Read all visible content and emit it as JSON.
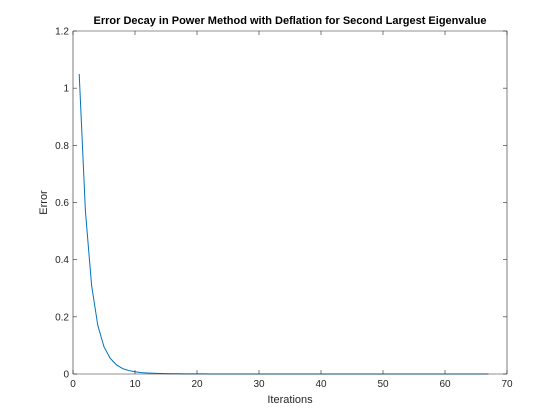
{
  "chart_data": {
    "type": "line",
    "title": "Error Decay in Power Method with Deflation for Second Largest Eigenvalue",
    "xlabel": "Iterations",
    "ylabel": "Error",
    "xlim": [
      0,
      70
    ],
    "ylim": [
      0,
      1.2
    ],
    "xticks": [
      0,
      10,
      20,
      30,
      40,
      50,
      60,
      70
    ],
    "yticks": [
      0,
      0.2,
      0.4,
      0.6,
      0.8,
      1,
      1.2
    ],
    "xtick_labels": [
      "0",
      "10",
      "20",
      "30",
      "40",
      "50",
      "60",
      "70"
    ],
    "ytick_labels": [
      "0",
      "0.2",
      "0.4",
      "0.6",
      "0.8",
      "1",
      "1.2"
    ],
    "grid": false,
    "box": true,
    "line_color": "#0072BD",
    "series": [
      {
        "x": [
          1,
          2,
          3,
          4,
          5,
          6,
          7,
          8,
          9,
          10,
          11,
          12,
          13,
          14,
          15,
          16,
          17,
          18,
          19,
          20,
          21,
          22,
          23,
          24,
          25,
          26,
          27,
          28,
          29,
          30,
          31,
          32,
          33,
          34,
          35,
          36,
          37,
          38,
          39,
          40,
          41,
          42,
          43,
          44,
          45,
          46,
          47,
          48,
          49,
          50,
          51,
          52,
          53,
          54,
          55,
          56,
          57,
          58,
          59,
          60,
          61,
          62,
          63,
          64,
          65,
          66,
          67
        ],
        "y": [
          1.05,
          0.57,
          0.31,
          0.17,
          0.095,
          0.055,
          0.032,
          0.019,
          0.012,
          0.008,
          0.005,
          0.0035,
          0.0025,
          0.0018,
          0.0013,
          0.001,
          0.0008,
          0.0006,
          0.0005,
          0.0004,
          0.0003,
          0.0002,
          0.0002,
          0.0001,
          0.0001,
          0.0001,
          0.0001,
          0.0001,
          0,
          0,
          0,
          0,
          0,
          0,
          0,
          0,
          0,
          0,
          0,
          0,
          0,
          0,
          0,
          0,
          0,
          0,
          0,
          0,
          0,
          0,
          0,
          0,
          0,
          0,
          0,
          0,
          0,
          0,
          0,
          0,
          0,
          0,
          0,
          0,
          0,
          0,
          0
        ]
      }
    ]
  }
}
